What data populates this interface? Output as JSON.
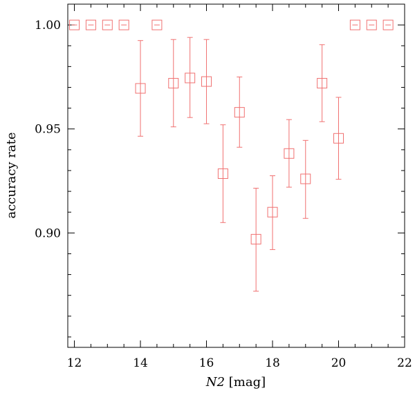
{
  "chart_data": {
    "type": "scatter",
    "xlabel": "N2",
    "xlabel_unit": "[mag]",
    "ylabel": "accuracy rate",
    "xlim": [
      11.8,
      22
    ],
    "ylim": [
      0.845,
      1.01
    ],
    "xticks": [
      12,
      14,
      16,
      18,
      20,
      22
    ],
    "xtick_labels": [
      "12",
      "14",
      "16",
      "18",
      "20",
      "22"
    ],
    "x_minor_step": 0.5,
    "yticks": [
      0.9,
      0.95,
      1.0
    ],
    "ytick_labels": [
      "0.90",
      "0.95",
      "1.00"
    ],
    "y_minor_step": 0.01,
    "grid": false,
    "marker": "open-square",
    "color": "#f07070",
    "points": [
      {
        "x": 12.0,
        "y": 1.0,
        "yerr_low": 1.0,
        "yerr_high": 1.0
      },
      {
        "x": 12.5,
        "y": 1.0,
        "yerr_low": 1.0,
        "yerr_high": 1.0
      },
      {
        "x": 13.0,
        "y": 1.0,
        "yerr_low": 1.0,
        "yerr_high": 1.0
      },
      {
        "x": 13.5,
        "y": 1.0,
        "yerr_low": 1.0,
        "yerr_high": 1.0
      },
      {
        "x": 14.0,
        "y": 0.9695,
        "yerr_low": 0.9465,
        "yerr_high": 0.9925
      },
      {
        "x": 14.5,
        "y": 1.0,
        "yerr_low": 1.0,
        "yerr_high": 1.0
      },
      {
        "x": 15.0,
        "y": 0.972,
        "yerr_low": 0.951,
        "yerr_high": 0.993
      },
      {
        "x": 15.5,
        "y": 0.9745,
        "yerr_low": 0.9555,
        "yerr_high": 0.994
      },
      {
        "x": 16.0,
        "y": 0.9728,
        "yerr_low": 0.9525,
        "yerr_high": 0.993
      },
      {
        "x": 16.5,
        "y": 0.9285,
        "yerr_low": 0.905,
        "yerr_high": 0.952
      },
      {
        "x": 17.0,
        "y": 0.958,
        "yerr_low": 0.9412,
        "yerr_high": 0.975
      },
      {
        "x": 17.5,
        "y": 0.897,
        "yerr_low": 0.872,
        "yerr_high": 0.9215
      },
      {
        "x": 18.0,
        "y": 0.91,
        "yerr_low": 0.892,
        "yerr_high": 0.9275
      },
      {
        "x": 18.5,
        "y": 0.9382,
        "yerr_low": 0.922,
        "yerr_high": 0.9545
      },
      {
        "x": 19.0,
        "y": 0.926,
        "yerr_low": 0.907,
        "yerr_high": 0.9445
      },
      {
        "x": 19.5,
        "y": 0.972,
        "yerr_low": 0.9535,
        "yerr_high": 0.9905
      },
      {
        "x": 20.0,
        "y": 0.9455,
        "yerr_low": 0.9258,
        "yerr_high": 0.9652
      },
      {
        "x": 20.5,
        "y": 1.0,
        "yerr_low": 1.0,
        "yerr_high": 1.0
      },
      {
        "x": 21.0,
        "y": 1.0,
        "yerr_low": 1.0,
        "yerr_high": 1.0
      },
      {
        "x": 21.5,
        "y": 1.0,
        "yerr_low": 1.0,
        "yerr_high": 1.0
      }
    ]
  }
}
